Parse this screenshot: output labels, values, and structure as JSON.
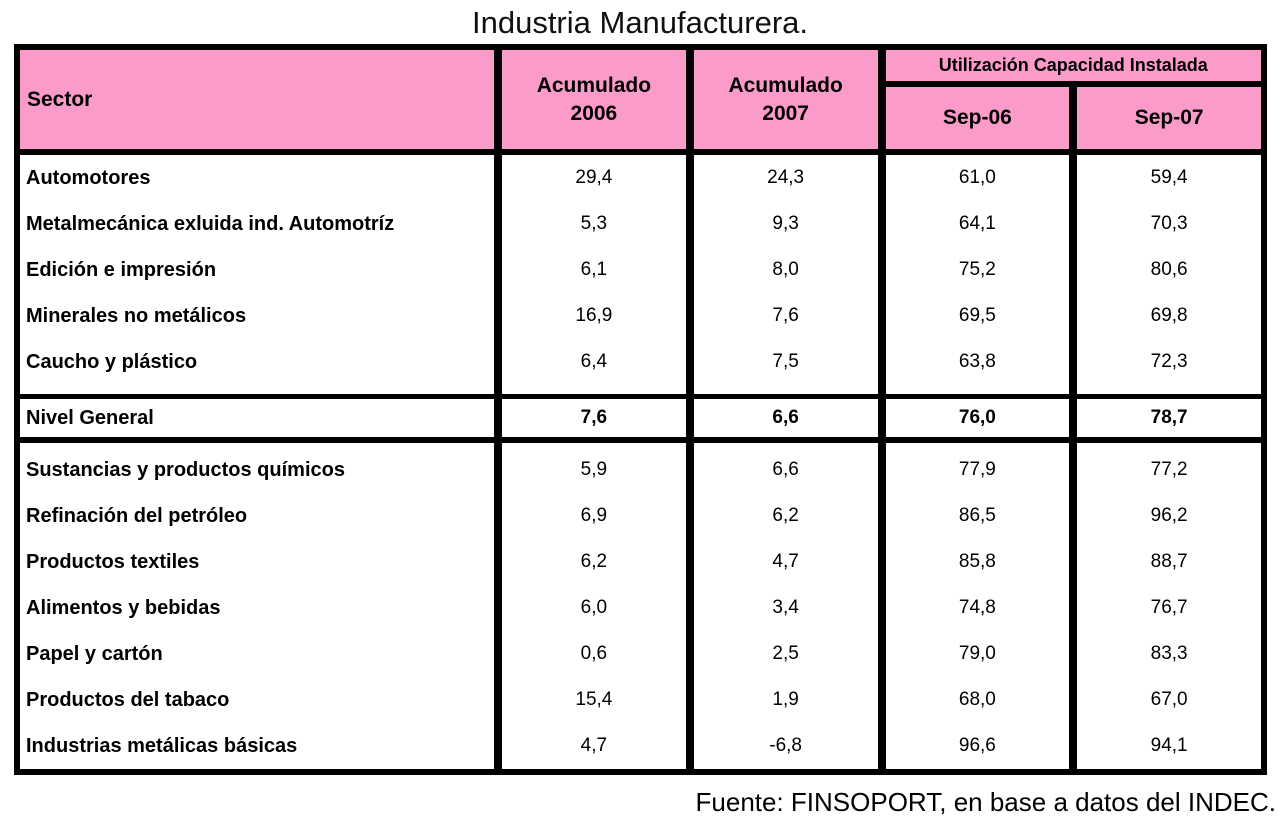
{
  "title": "Industria Manufacturera.",
  "source_note": "Fuente: FINSOPORT, en base a datos del INDEC.",
  "colors": {
    "header_bg": "#fb9bc9",
    "border": "#000000",
    "background": "#ffffff",
    "text": "#000000"
  },
  "table": {
    "header": {
      "sector_label": "Sector",
      "acum2006_line1": "Acumulado",
      "acum2006_line2": "2006",
      "acum2007_line1": "Acumulado",
      "acum2007_line2": "2007",
      "uci_label": "Utilización Capacidad Instalada",
      "sep06_label": "Sep-06",
      "sep07_label": "Sep-07"
    },
    "group1_rows": [
      {
        "sector": "Automotores",
        "values": [
          "29,4",
          "24,3",
          "61,0",
          "59,4"
        ]
      },
      {
        "sector": "Metalmecánica exluida ind. Automotríz",
        "values": [
          "5,3",
          "9,3",
          "64,1",
          "70,3"
        ]
      },
      {
        "sector": "Edición e impresión",
        "values": [
          "6,1",
          "8,0",
          "75,2",
          "80,6"
        ]
      },
      {
        "sector": "Minerales no metálicos",
        "values": [
          "16,9",
          "7,6",
          "69,5",
          "69,8"
        ]
      },
      {
        "sector": "Caucho y plástico",
        "values": [
          "6,4",
          "7,5",
          "63,8",
          "72,3"
        ]
      }
    ],
    "nivel_general": {
      "sector": "Nivel General",
      "values": [
        "7,6",
        "6,6",
        "76,0",
        "78,7"
      ]
    },
    "group2_rows": [
      {
        "sector": "Sustancias y productos químicos",
        "values": [
          "5,9",
          "6,6",
          "77,9",
          "77,2"
        ]
      },
      {
        "sector": "Refinación del petróleo",
        "values": [
          "6,9",
          "6,2",
          "86,5",
          "96,2"
        ]
      },
      {
        "sector": "Productos textiles",
        "values": [
          "6,2",
          "4,7",
          "85,8",
          "88,7"
        ]
      },
      {
        "sector": "Alimentos y bebidas",
        "values": [
          "6,0",
          "3,4",
          "74,8",
          "76,7"
        ]
      },
      {
        "sector": "Papel y cartón",
        "values": [
          "0,6",
          "2,5",
          "79,0",
          "83,3"
        ]
      },
      {
        "sector": "Productos del tabaco",
        "values": [
          "15,4",
          "1,9",
          "68,0",
          "67,0"
        ]
      },
      {
        "sector": "Industrias metálicas básicas",
        "values": [
          "4,7",
          "-6,8",
          "96,6",
          "94,1"
        ]
      }
    ]
  },
  "chart_data": {
    "type": "table",
    "title": "Industria Manufacturera.",
    "columns": [
      "Sector",
      "Acumulado 2006",
      "Acumulado 2007",
      "Utilización Capacidad Instalada Sep-06",
      "Utilización Capacidad Instalada Sep-07"
    ],
    "rows": [
      [
        "Automotores",
        29.4,
        24.3,
        61.0,
        59.4
      ],
      [
        "Metalmecánica exluida ind. Automotríz",
        5.3,
        9.3,
        64.1,
        70.3
      ],
      [
        "Edición e impresión",
        6.1,
        8.0,
        75.2,
        80.6
      ],
      [
        "Minerales no metálicos",
        16.9,
        7.6,
        69.5,
        69.8
      ],
      [
        "Caucho y plástico",
        6.4,
        7.5,
        63.8,
        72.3
      ],
      [
        "Nivel General",
        7.6,
        6.6,
        76.0,
        78.7
      ],
      [
        "Sustancias y productos químicos",
        5.9,
        6.6,
        77.9,
        77.2
      ],
      [
        "Refinación del petróleo",
        6.9,
        6.2,
        86.5,
        96.2
      ],
      [
        "Productos textiles",
        6.2,
        4.7,
        85.8,
        88.7
      ],
      [
        "Alimentos y bebidas",
        6.0,
        3.4,
        74.8,
        76.7
      ],
      [
        "Papel y cartón",
        0.6,
        2.5,
        79.0,
        83.3
      ],
      [
        "Productos del tabaco",
        15.4,
        1.9,
        68.0,
        67.0
      ],
      [
        "Industrias metálicas básicas",
        4.7,
        -6.8,
        96.6,
        94.1
      ]
    ],
    "source": "Fuente: FINSOPORT, en base a datos del INDEC.",
    "notes": "Bold 'Nivel General' summary row separated by thick rules; header cells pink"
  }
}
